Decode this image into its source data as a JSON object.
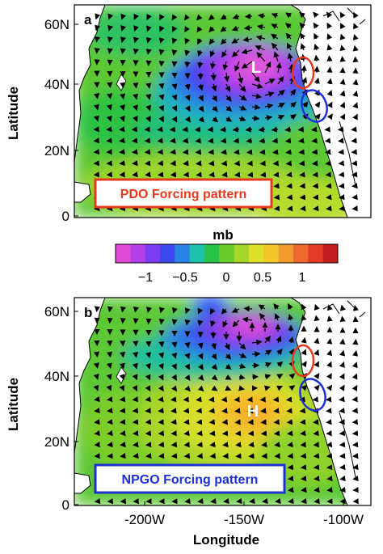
{
  "panel_a": {
    "letter": "a",
    "center_label": "L",
    "box_label": "PDO Forcing pattern",
    "box_color": "#e8391f",
    "y_axis_label": "Latitude",
    "y_ticks": [
      "60N",
      "40N",
      "20N",
      "0"
    ]
  },
  "panel_b": {
    "letter": "b",
    "center_label": "H",
    "box_label": "NPGO Forcing pattern",
    "box_color": "#1d2fd8",
    "y_axis_label": "Latitude",
    "y_ticks": [
      "60N",
      "40N",
      "20N",
      "0"
    ],
    "x_ticks": [
      "-200W",
      "-150W",
      "-100W"
    ],
    "x_axis_label": "Longitude"
  },
  "colorbar": {
    "unit": "mb",
    "ticks": [
      "−1",
      "−0.5",
      "0",
      "0.5",
      "1"
    ],
    "colors": [
      "#e14ad6",
      "#b640e8",
      "#7c3cf0",
      "#3b48ee",
      "#2a83e6",
      "#1fc0a8",
      "#29c24c",
      "#6acb2d",
      "#a7d62a",
      "#dfe129",
      "#f6c52a",
      "#f39b2c",
      "#ec6a2d",
      "#e33a28",
      "#c21e1e"
    ]
  },
  "annotations": {
    "red_ellipse_color": "#e8391f",
    "blue_ellipse_color": "#1d2fd8"
  }
}
